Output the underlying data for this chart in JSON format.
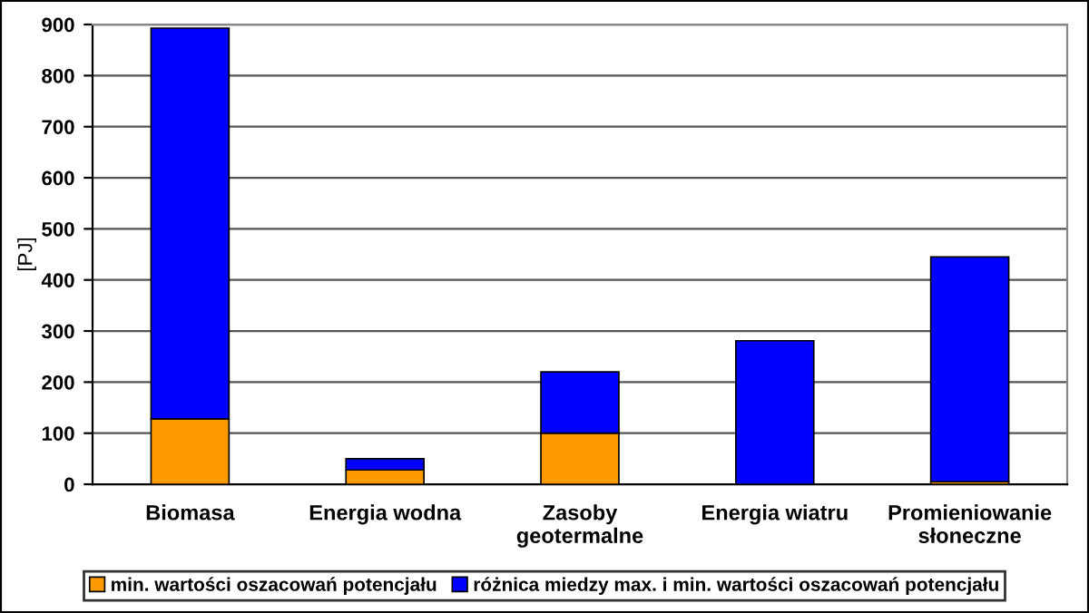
{
  "chart_data": {
    "type": "bar",
    "stacked": true,
    "ylabel": "[PJ]",
    "categories": [
      "Biomasa",
      "Energia wodna",
      "Zasoby\ngeotermalne",
      "Energia wiatru",
      "Promieniowanie\nsłoneczne"
    ],
    "series": [
      {
        "name": "min. wartości oszacowań potencjału",
        "color": "#ff9900",
        "values": [
          128,
          28,
          100,
          null,
          5
        ]
      },
      {
        "name": "różnica miedzy max. i min. wartości oszacowań potencjału",
        "color": "#0000ff",
        "values": [
          765,
          22,
          120,
          281,
          440
        ]
      }
    ],
    "ylim": [
      0,
      900
    ],
    "yticks": [
      0,
      100,
      200,
      300,
      400,
      500,
      600,
      700,
      800,
      900
    ],
    "grid": "y",
    "legend": "bottom"
  }
}
